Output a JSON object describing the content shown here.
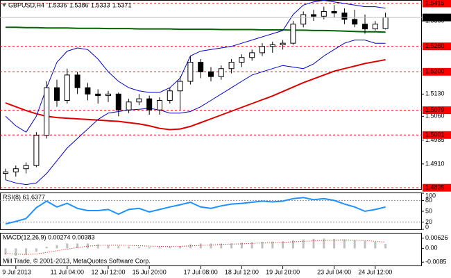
{
  "header": {
    "symbol": "GBPUSD,H4"
  },
  "chart_data": [
    {
      "type": "candlestick",
      "categories": [
        null,
        "9 Jul 2013",
        null,
        null,
        null,
        null,
        "11 Jul 04:00",
        null,
        null,
        null,
        "12 Jul 12:00",
        null,
        null,
        null,
        "15 Jul 20:00",
        null,
        null,
        null,
        null,
        "17 Jul 08:00",
        null,
        null,
        null,
        "18 Jul 12:00",
        null,
        null,
        null,
        "19 Jul 20:00",
        null,
        null,
        null,
        null,
        "23 Jul 04:00",
        null,
        null,
        null,
        "24 Jul 12:00",
        null
      ],
      "open": [
        1.488,
        1.4885,
        1.4895,
        1.4905,
        1.5,
        1.515,
        1.511,
        1.519,
        1.515,
        1.513,
        1.5125,
        1.513,
        1.508,
        1.5105,
        1.5115,
        1.508,
        1.511,
        1.514,
        1.517,
        1.523,
        1.52,
        1.5185,
        1.521,
        1.523,
        1.5245,
        1.526,
        1.528,
        1.5285,
        1.529,
        1.535,
        1.538,
        1.5375,
        1.539,
        1.5385,
        1.5365,
        1.535,
        1.5335,
        1.5336
      ],
      "high": [
        1.4895,
        1.4905,
        1.4915,
        1.501,
        1.517,
        1.5175,
        1.521,
        1.52,
        1.5165,
        1.5145,
        1.514,
        1.5135,
        1.5115,
        1.513,
        1.5125,
        1.512,
        1.515,
        1.5185,
        1.525,
        1.524,
        1.5215,
        1.522,
        1.524,
        1.5255,
        1.527,
        1.529,
        1.5295,
        1.53,
        1.536,
        1.539,
        1.5395,
        1.5405,
        1.541,
        1.54,
        1.5395,
        1.538,
        1.536,
        1.5386
      ],
      "low": [
        1.486,
        1.487,
        1.488,
        1.49,
        1.499,
        1.509,
        1.51,
        1.513,
        1.511,
        1.51,
        1.5105,
        1.506,
        1.507,
        1.5095,
        1.5065,
        1.5065,
        1.51,
        1.508,
        1.516,
        1.518,
        1.517,
        1.5175,
        1.5195,
        1.5215,
        1.5235,
        1.525,
        1.526,
        1.527,
        1.5285,
        1.534,
        1.536,
        1.5365,
        1.537,
        1.535,
        1.534,
        1.532,
        1.533,
        1.5333
      ],
      "close": [
        1.4885,
        1.4895,
        1.4905,
        1.5,
        1.515,
        1.511,
        1.519,
        1.515,
        1.513,
        1.5125,
        1.513,
        1.508,
        1.5105,
        1.5115,
        1.508,
        1.511,
        1.514,
        1.517,
        1.523,
        1.52,
        1.5185,
        1.521,
        1.523,
        1.5245,
        1.526,
        1.528,
        1.5285,
        1.529,
        1.535,
        1.538,
        1.5375,
        1.539,
        1.5385,
        1.5365,
        1.535,
        1.5335,
        1.535,
        1.5371
      ],
      "series": [
        {
          "color": "#006400",
          "width": 2,
          "values": [
            1.534,
            1.534,
            1.5339,
            1.5339,
            1.5338,
            1.5338,
            1.5338,
            1.5337,
            1.5337,
            1.5337,
            1.5336,
            1.5336,
            1.5336,
            1.5335,
            1.5335,
            1.5335,
            1.5335,
            1.5334,
            1.5334,
            1.5334,
            1.5334,
            1.5333,
            1.5333,
            1.5333,
            1.5333,
            1.5332,
            1.5332,
            1.5332,
            1.5331,
            1.5331,
            1.533,
            1.533,
            1.5329,
            1.5328,
            1.5327,
            1.5326,
            1.5326,
            1.5325
          ]
        },
        {
          "color": "#dd0000",
          "width": 2,
          "values": [
            1.5102,
            1.509,
            1.5078,
            1.5068,
            1.506,
            1.5056,
            1.5054,
            1.5052,
            1.505,
            1.5048,
            1.5046,
            1.5044,
            1.504,
            1.5036,
            1.503,
            1.5022,
            1.5018,
            1.502,
            1.5028,
            1.504,
            1.5052,
            1.5064,
            1.5076,
            1.5088,
            1.51,
            1.5112,
            1.5124,
            1.5138,
            1.5152,
            1.5166,
            1.5178,
            1.519,
            1.5202,
            1.521,
            1.5218,
            1.5226,
            1.5232,
            1.5238
          ]
        },
        {
          "color": "#0000cc",
          "width": 1,
          "values": [
            1.506,
            1.503,
            1.501,
            1.506,
            1.515,
            1.523,
            1.5265,
            1.5275,
            1.527,
            1.524,
            1.52,
            1.517,
            1.515,
            1.514,
            1.5135,
            1.5135,
            1.515,
            1.518,
            1.525,
            1.5265,
            1.527,
            1.5275,
            1.528,
            1.529,
            1.53,
            1.531,
            1.532,
            1.533,
            1.538,
            1.541,
            1.542,
            1.5425,
            1.542,
            1.5415,
            1.541,
            1.5405,
            1.5405,
            1.54
          ]
        },
        {
          "color": "#0000cc",
          "width": 1,
          "values": [
            1.486,
            1.485,
            1.4845,
            1.485,
            1.488,
            1.492,
            1.496,
            1.499,
            1.502,
            1.505,
            1.507,
            1.5075,
            1.508,
            1.5082,
            1.5085,
            1.508,
            1.507,
            1.507,
            1.5075,
            1.509,
            1.511,
            1.513,
            1.515,
            1.517,
            1.519,
            1.52,
            1.521,
            1.522,
            1.5215,
            1.521,
            1.5225,
            1.525,
            1.527,
            1.529,
            1.53,
            1.53,
            1.529,
            1.529
          ]
        }
      ],
      "ylim": [
        1.4831,
        1.5426
      ],
      "yticks": [
        {
          "value": 1.536,
          "label": "1.5360"
        },
        {
          "value": 1.513,
          "label": "1.5130"
        },
        {
          "value": 1.506,
          "label": "1.5060"
        },
        1.4985,
        {
          "value": 1.491,
          "label": "1.4910"
        }
      ],
      "levels": {
        "color": "#ff0000",
        "values": [
          1.5415,
          {
            "value": 1.528,
            "label": "1.5280"
          },
          {
            "value": 1.52,
            "label": "1.5200"
          },
          1.5079,
          1.5001,
          1.4835
        ]
      }
    },
    {
      "type": "line",
      "title": "RSI(8) 61.6377",
      "series": [
        {
          "color": "#1e90ff",
          "values": [
            15,
            22,
            30,
            60,
            78,
            62,
            72,
            58,
            52,
            52,
            55,
            42,
            55,
            58,
            48,
            55,
            62,
            68,
            75,
            62,
            58,
            65,
            70,
            72,
            75,
            78,
            76,
            78,
            85,
            88,
            82,
            85,
            80,
            70,
            62,
            50,
            55,
            61.6377
          ]
        }
      ],
      "ylim": [
        0,
        100
      ],
      "yticks": [
        100,
        80,
        50,
        20,
        0
      ],
      "levels": [
        80,
        20
      ]
    },
    {
      "type": "macd",
      "title": "MACD(12,26,9) 0.00274 0.00383",
      "annotation": "Mill Trade, © 2001-2013, MetaQuotes Software Corp.",
      "series": [
        {
          "kind": "bar",
          "color": "#c0c0c0",
          "values": [
            -0.004,
            -0.0045,
            -0.004,
            -0.002,
            0.001,
            0.002,
            0.003,
            0.003,
            0.003,
            0.0025,
            0.002,
            0.0015,
            0.0012,
            0.001,
            0.0008,
            0.0008,
            0.001,
            0.0015,
            0.0025,
            0.003,
            0.003,
            0.003,
            0.0032,
            0.0035,
            0.0038,
            0.004,
            0.0042,
            0.0044,
            0.005,
            0.0055,
            0.0058,
            0.006,
            0.0058,
            0.0055,
            0.005,
            0.0045,
            0.004,
            0.00274
          ]
        },
        {
          "kind": "line",
          "color": "#ff0000",
          "values": [
            -0.003,
            -0.0035,
            -0.0038,
            -0.0034,
            -0.0025,
            -0.0015,
            -0.0005,
            0.0005,
            0.0013,
            0.0018,
            0.002,
            0.002,
            0.0018,
            0.0016,
            0.0014,
            0.0012,
            0.0011,
            0.0012,
            0.0015,
            0.0018,
            0.0021,
            0.0024,
            0.0026,
            0.0028,
            0.003,
            0.0033,
            0.0035,
            0.0037,
            0.004,
            0.0043,
            0.0046,
            0.0049,
            0.0051,
            0.0052,
            0.0051,
            0.0048,
            0.0043,
            0.00383
          ]
        }
      ],
      "ylim": [
        -0.01055,
        0.00913
      ],
      "yticks": [
        0.00626,
        {
          "value": 0,
          "label": "0.00"
        },
        -0.0085
      ]
    }
  ]
}
